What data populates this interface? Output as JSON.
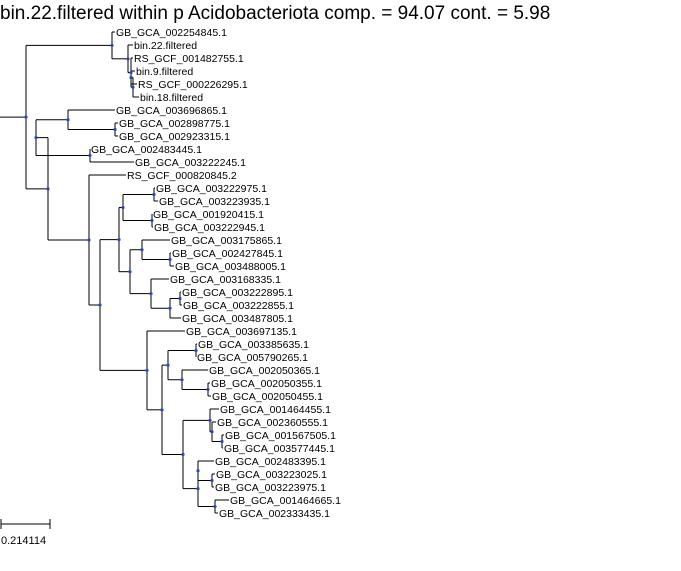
{
  "title": "bin.22.filtered within p Acidobacteriota comp. = 94.07 cont. = 5.98",
  "scale_bar": {
    "label": "0.214114"
  },
  "colors": {
    "node": "#2b4bb3",
    "branch": "#000000"
  },
  "leaves": [
    "GB_GCA_002254845.1",
    "bin.22.filtered",
    "RS_GCF_001482755.1",
    "bin.9.filtered",
    "RS_GCF_000226295.1",
    "bin.18.filtered",
    "GB_GCA_003696865.1",
    "GB_GCA_002898775.1",
    "GB_GCA_002923315.1",
    "GB_GCA_002483445.1",
    "GB_GCA_003222245.1",
    "RS_GCF_000820845.2",
    "GB_GCA_003222975.1",
    "GB_GCA_003223935.1",
    "GB_GCA_001920415.1",
    "GB_GCA_003222945.1",
    "GB_GCA_003175865.1",
    "GB_GCA_002427845.1",
    "GB_GCA_003488005.1",
    "GB_GCA_003168335.1",
    "GB_GCA_003222895.1",
    "GB_GCA_003222855.1",
    "GB_GCA_003487805.1",
    "GB_GCA_003697135.1",
    "GB_GCA_003385635.1",
    "GB_GCA_005790265.1",
    "GB_GCA_002050365.1",
    "GB_GCA_002050355.1",
    "GB_GCA_002050455.1",
    "GB_GCA_001464455.1",
    "GB_GCA_002360555.1",
    "GB_GCA_001567505.1",
    "GB_GCA_003577445.1",
    "GB_GCA_002483395.1",
    "GB_GCA_003223025.1",
    "GB_GCA_003223975.1",
    "GB_GCA_001464665.1",
    "GB_GCA_002333435.1"
  ]
}
